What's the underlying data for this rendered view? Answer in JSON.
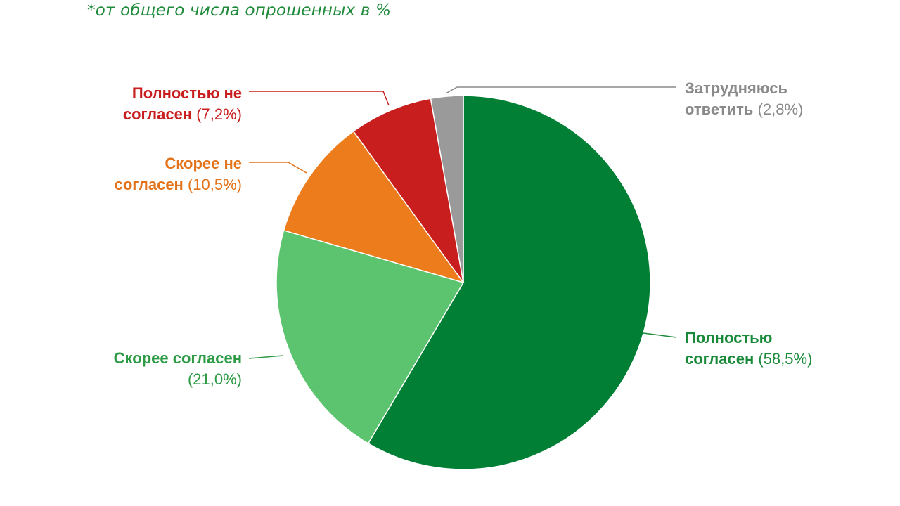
{
  "note": "*от общего числа опрошенных в %",
  "chart_data": {
    "type": "pie",
    "title": "",
    "slices": [
      {
        "line1": "Полностью",
        "line2": "согласен",
        "pct_label": "(58,5%)",
        "value": 58.5,
        "color": "#007f35",
        "label_color": "#1a8a3a"
      },
      {
        "line1": "Скорее согласен",
        "line2": "",
        "pct_label": "(21,0%)",
        "value": 21.0,
        "color": "#5cc36f",
        "label_color": "#2d9a45"
      },
      {
        "line1": "Скорее не",
        "line2": "согласен",
        "pct_label": "(10,5%)",
        "value": 10.5,
        "color": "#ed7d1c",
        "label_color": "#e2731a"
      },
      {
        "line1": "Полностью не",
        "line2": "согласен",
        "pct_label": "(7,2%)",
        "value": 7.2,
        "color": "#c81e1e",
        "label_color": "#c81e1e"
      },
      {
        "line1": "Затрудняюсь",
        "line2": "ответить",
        "pct_label": "(2,8%)",
        "value": 2.8,
        "color": "#9a9a9a",
        "label_color": "#8a8a8a"
      }
    ]
  }
}
